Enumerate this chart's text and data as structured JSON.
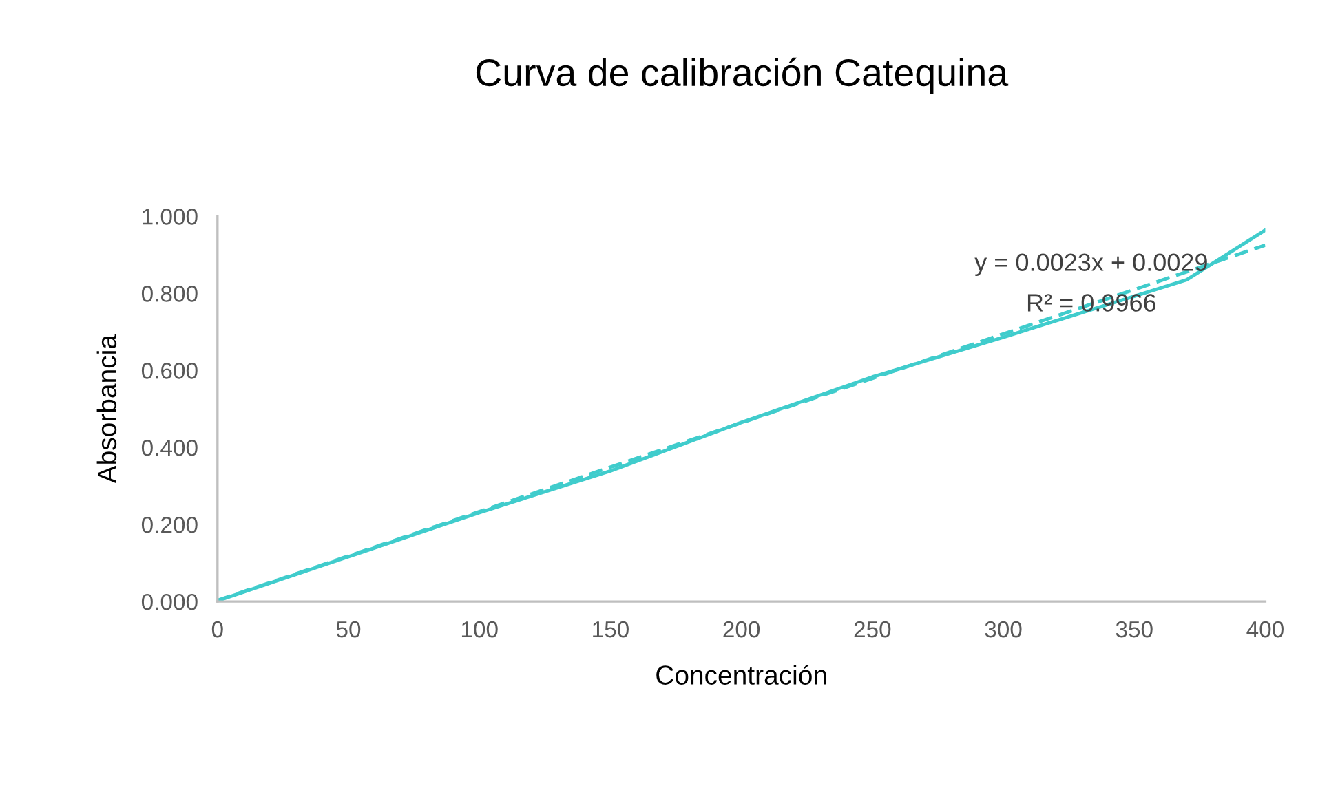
{
  "chart_data": {
    "type": "line",
    "title": "Curva de calibración Catequina",
    "xlabel": "Concentración",
    "ylabel": "Absorbancia",
    "series": [
      {
        "color": "#40cccc",
        "x": [
          0,
          100,
          150,
          200,
          250,
          300,
          370,
          400
        ],
        "values": [
          0.002,
          0.231,
          0.339,
          0.465,
          0.583,
          0.686,
          0.835,
          0.964
        ],
        "line_style": "solid"
      },
      {
        "type": "line",
        "color": "#40cccc",
        "x": [
          0,
          400
        ],
        "values": [
          0.003,
          0.925
        ],
        "line_style": "dashed"
      }
    ],
    "annotations": [
      "y = 0.0023x + 0.0029",
      "R² = 0.9966"
    ],
    "xlim": [
      0,
      400
    ],
    "xticks": [
      0,
      50,
      100,
      150,
      200,
      250,
      300,
      350,
      400
    ],
    "ylim": [
      0,
      1
    ],
    "yticks": [
      {
        "value": 0,
        "label": "0.000"
      },
      {
        "value": 0.2,
        "label": "0.200"
      },
      {
        "value": 0.4,
        "label": "0.400"
      },
      {
        "value": 0.6,
        "label": "0.600"
      },
      {
        "value": 0.8,
        "label": "0.800"
      },
      {
        "value": 1,
        "label": "1.000"
      }
    ],
    "grid": false,
    "marker": "none"
  }
}
